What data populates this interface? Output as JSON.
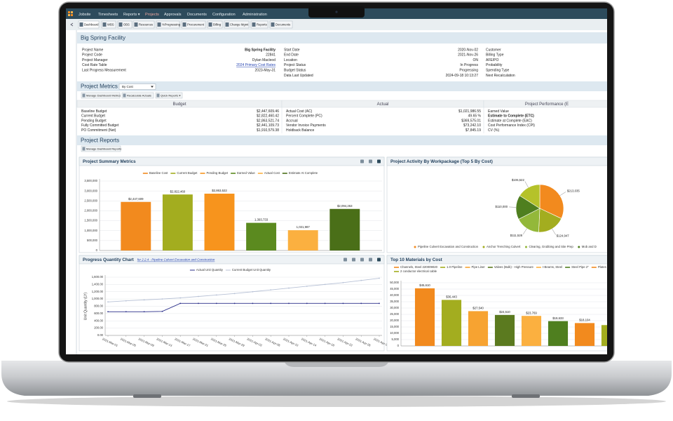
{
  "nav": {
    "items": [
      "Jobsite",
      "Timesheets",
      "Reports ▾",
      "Projects",
      "Approvals",
      "Documents",
      "Configuration",
      "Administration"
    ]
  },
  "toolbar": {
    "tabs": [
      "Dashboard",
      "WBS",
      "OBS",
      "Resources",
      "%Progressing",
      "Procurement",
      "Billing",
      "Change Mgmt",
      "Reports",
      "Documents"
    ]
  },
  "header": {
    "title": "Big Spring Facility"
  },
  "info": {
    "columns": [
      [
        {
          "label": "Project Name",
          "value": "Big Spring Facility"
        },
        {
          "label": "Project Code",
          "value": "22841"
        },
        {
          "label": "Project Manager",
          "value": "Dylan Macleod"
        },
        {
          "label": "Cost Rate Table",
          "value": "2024 Primary Cost Rates"
        },
        {
          "label": "Last Progress Measurement",
          "value": "2023-May-31"
        }
      ],
      [
        {
          "label": "Start Date",
          "value": "2020-Nov-02"
        },
        {
          "label": "End Date",
          "value": "2021-Nov-26"
        },
        {
          "label": "Location",
          "value": "ON"
        },
        {
          "label": "Project Status",
          "value": "In Progress"
        },
        {
          "label": "Budget Status",
          "value": "Progressing"
        },
        {
          "label": "Data Last Updated",
          "value": "2024-09-18 10:13:27"
        }
      ],
      [
        {
          "label": "Customer"
        },
        {
          "label": "Billing Type"
        },
        {
          "label": "AFE/PO"
        },
        {
          "label": "Probability"
        },
        {
          "label": "Spending Type"
        },
        {
          "label": "Next Recalculation"
        }
      ]
    ]
  },
  "metrics": {
    "title": "Project Metrics",
    "selector": "By Cost",
    "buttons": [
      "Manage Dashboard Metrics",
      "Recalculate Actuals",
      "Quick Reports ▾"
    ],
    "columns": [
      {
        "heading": "Budget",
        "rows": [
          {
            "label": "Baseline Budget",
            "value": "$2,447,609.46"
          },
          {
            "label": "Current Budget",
            "value": "$2,822,460.42"
          },
          {
            "label": "Pending Budget",
            "value": "$2,863,521.74"
          },
          {
            "label": "Fully Committed Budget",
            "value": "$2,441,109.73"
          },
          {
            "label": "PO Commitment (Net)",
            "value": "$1,910,579.38"
          }
        ]
      },
      {
        "heading": "Actual",
        "rows": [
          {
            "label": "Actual Cost (AC)",
            "value": "$1,021,986.55"
          },
          {
            "label": "Percent Complete (PC)",
            "value": "49.65 %"
          },
          {
            "label": "Accrual",
            "value": "$369,575.01"
          },
          {
            "label": "Vendor Invoice Payments",
            "value": "$73,242.10"
          },
          {
            "label": "Holdback Balance",
            "value": "$7,845.19"
          }
        ]
      },
      {
        "heading": "Project Performance (E",
        "rows": [
          {
            "label": "Earned Value"
          },
          {
            "label": "Estimate to Complete (ETC)"
          },
          {
            "label": "Estimate at Complete (EAC)"
          },
          {
            "label": "Cost Performance Index (CPI)"
          },
          {
            "label": "CV (%)"
          }
        ]
      }
    ]
  },
  "reports": {
    "title": "Project Reports",
    "button": "Manage Dashboard Reports"
  },
  "chart_data": [
    {
      "type": "bar",
      "title": "Project Summary Metrics",
      "categories": [
        "Baseline Cost",
        "Current Budget",
        "Pending Budget",
        "Earned Value",
        "Actual Cost",
        "Estimate At Complete"
      ],
      "values": [
        2447609,
        2822460,
        2863522,
        1393733,
        1021987,
        2094263
      ],
      "value_labels": [
        "$2,447,609",
        "$2,822,460",
        "$2,863,522",
        "1,393,733",
        "1,021,987",
        "$2,094,263"
      ],
      "colors": [
        "#f28a1e",
        "#a3ad1f",
        "#f7941d",
        "#5b8a1f",
        "#fbb040",
        "#4a6f18"
      ],
      "ylim": [
        0,
        3500000
      ],
      "yticks": [
        0,
        {
          "value": 500000,
          "label": "500,000"
        },
        {
          "value": 1000000,
          "label": "1,000,000"
        },
        {
          "value": 1500000,
          "label": "1,500,000"
        },
        {
          "value": 2000000,
          "label": "2,000,000"
        },
        {
          "value": 2500000,
          "label": "2,500,000"
        },
        {
          "value": 3000000,
          "label": "3,000,000"
        },
        {
          "value": 3500000,
          "label": "3,500,000"
        }
      ],
      "grid": true
    },
    {
      "type": "pie",
      "title": "Project Activity By Workpackage (Top 5 By Cost)",
      "categories": [
        "Pipeline Culvert Excavation and Construction",
        "Anchor Trenching Culvert",
        "Clearing, Grubbing and Site Prep",
        "Mob and D",
        null
      ],
      "values": [
        213035,
        124947,
        111528,
        110000,
        106522
      ],
      "value_labels": [
        "$213,035",
        "$124,947",
        "$111,528",
        "$110,000",
        "$106,522"
      ],
      "colors": [
        "#f28a1e",
        "#a3ad1f",
        "#93b83a",
        "#4f7f1f",
        "#b5c22a"
      ]
    },
    {
      "type": "line",
      "title": "Progress Quantity Chart",
      "subtitle": "for 2.2.4 - Pipeline Culvert Excavation and Construction",
      "y_label": "Unit Quantity (LY)",
      "categories": [
        "2021-Mar-01",
        "2021-Mar-05",
        "2021-Mar-09",
        "2021-Mar-13",
        "2021-Mar-17",
        "2021-Mar-21",
        "2021-Mar-25",
        "2021-Mar-29",
        "2021-Apr-02",
        "2021-Apr-06",
        "2021-Apr-10",
        "2021-Apr-14",
        "2021-Apr-18",
        "2021-Apr-22",
        "2021-Apr-26",
        "2021-Apr-30"
      ],
      "series": [
        {
          "name": "Actual Unit Quantity",
          "color": "#2b2f8a",
          "values": [
            650,
            650,
            650,
            660,
            880,
            880,
            880,
            880,
            880,
            880,
            880,
            880,
            880,
            880,
            880,
            880
          ]
        },
        {
          "name": "Current Budget Unit Quantity",
          "color": "#b8c2d6",
          "values": [
            920,
            950,
            975,
            1000,
            1030,
            1070,
            1110,
            1150,
            1200,
            1250,
            1300,
            1350,
            1400,
            1450,
            1510,
            1570
          ]
        }
      ],
      "ylim": [
        0,
        1600
      ],
      "yticks": [
        {
          "value": 0,
          "label": "0.00"
        },
        {
          "value": 200,
          "label": "200.00"
        },
        {
          "value": 400,
          "label": "400.00"
        },
        {
          "value": 600,
          "label": "600.00"
        },
        {
          "value": 800,
          "label": "800.00"
        },
        {
          "value": 1000,
          "label": "1,000.00"
        },
        {
          "value": 1200,
          "label": "1,200.00"
        },
        {
          "value": 1400,
          "label": "1,400.00"
        },
        {
          "value": 1600,
          "label": "1,600.00"
        }
      ],
      "grid": true
    },
    {
      "type": "bar",
      "title": "Top 10 Materials by Cost",
      "categories": [
        "Channels, Steel 220009020",
        "1.0 Pipeline",
        "Pipe Liner",
        "Valves (Bulk) - High Pressure",
        "I-Beams, Steel",
        "Steel Pipe 2\"",
        "Plates",
        "2 conductor electrical cable"
      ],
      "values": [
        45610,
        36443,
        27540,
        24510,
        23769,
        19633,
        18104,
        16500
      ],
      "value_labels": [
        "$45,610",
        "$36,443",
        "$27,540",
        "$24,510",
        "$23,769",
        "$19,633",
        "$18,104",
        null
      ],
      "colors": [
        "#f28a1e",
        "#a3ad1f",
        "#f7a331",
        "#5b7a1f",
        "#fbb040",
        "#4f7f1f",
        "#f28a1e",
        "#a3ad1f"
      ],
      "ylim": [
        0,
        50000
      ],
      "yticks": [
        0,
        {
          "value": 5000,
          "label": "5,000"
        },
        {
          "value": 10000,
          "label": "10,000"
        },
        {
          "value": 15000,
          "label": "15,000"
        },
        {
          "value": 20000,
          "label": "20,000"
        },
        {
          "value": 25000,
          "label": "25,000"
        },
        {
          "value": 30000,
          "label": "30,000"
        },
        {
          "value": 35000,
          "label": "35,000"
        },
        {
          "value": 40000,
          "label": "40,000"
        },
        {
          "value": 45000,
          "label": "45,000"
        },
        {
          "value": 50000,
          "label": "50,000"
        }
      ],
      "grid": true
    }
  ]
}
